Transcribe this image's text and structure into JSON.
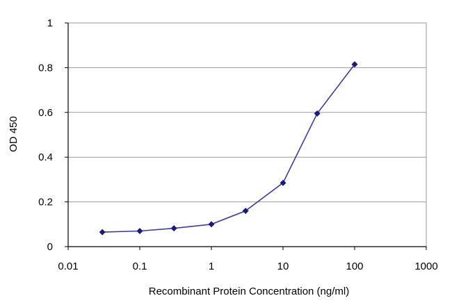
{
  "chart_data": {
    "type": "line",
    "title": "",
    "xlabel": "Recombinant Protein Concentration (ng/ml)",
    "ylabel": "OD 450",
    "x_scale": "log",
    "xlim": [
      0.01,
      1000
    ],
    "ylim": [
      0,
      1
    ],
    "x_ticks": [
      "0.01",
      "0.1",
      "1",
      "10",
      "100",
      "1000"
    ],
    "x_tick_values": [
      0.01,
      0.1,
      1,
      10,
      100,
      1000
    ],
    "y_ticks": [
      "0",
      "0.2",
      "0.4",
      "0.6",
      "0.8",
      "1"
    ],
    "y_tick_values": [
      0,
      0.2,
      0.4,
      0.6,
      0.8,
      1
    ],
    "grid": "horizontal",
    "legend": "none",
    "series": [
      {
        "x": [
          0.03,
          0.1,
          0.3,
          1,
          3,
          10,
          30,
          100
        ],
        "y": [
          0.065,
          0.07,
          0.082,
          0.1,
          0.16,
          0.285,
          0.595,
          0.815
        ]
      }
    ],
    "colors": {
      "line": "#3b3b9e",
      "marker": "#1a1a7a",
      "grid": "#9a9a9a",
      "axis": "#000000",
      "plot_border": "#9a9a9a"
    }
  }
}
